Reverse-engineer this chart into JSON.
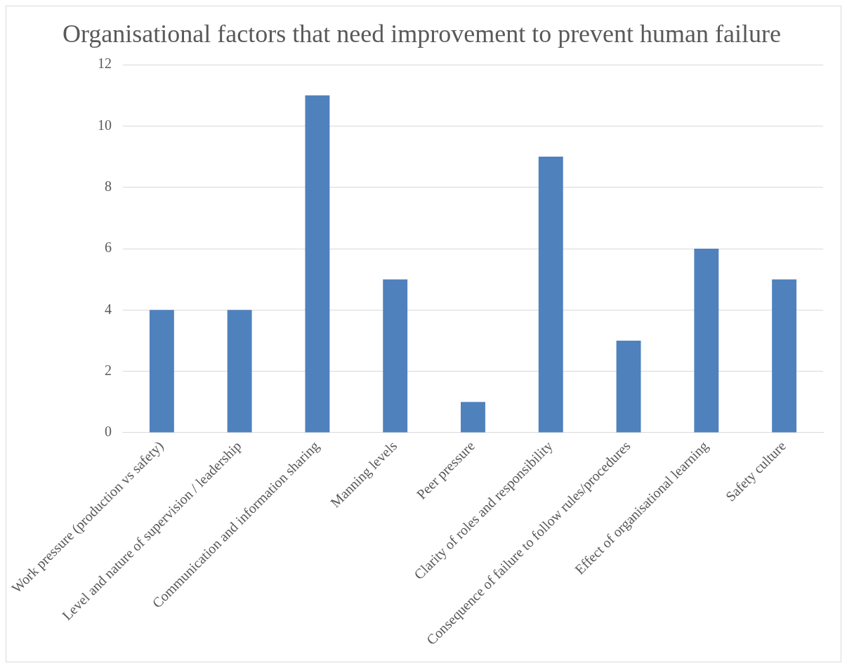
{
  "chart_data": {
    "type": "bar",
    "title": "Organisational factors that need improvement to prevent human failure",
    "categories": [
      "Work pressure (production vs safety)",
      "Level and nature of supervision / leadership",
      "Communication and information sharing",
      "Manning levels",
      "Peer pressure",
      "Clarity of roles and responsibility",
      "Consequence of failure to follow rules/procedures",
      "Effect of organisational learning",
      "Safety culture"
    ],
    "values": [
      4,
      4,
      11,
      5,
      1,
      9,
      3,
      6,
      5
    ],
    "color": "#4f81bd",
    "ylim": [
      0,
      12
    ],
    "yticks": [
      0,
      2,
      4,
      6,
      8,
      10,
      12
    ],
    "grid": "y",
    "legend": false
  }
}
